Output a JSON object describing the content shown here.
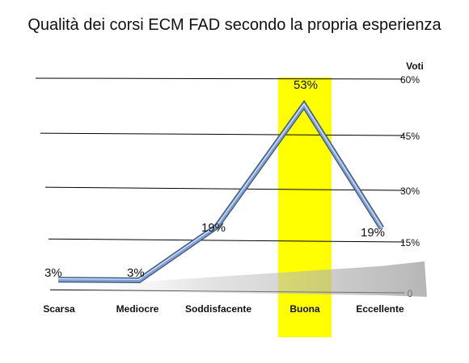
{
  "chart_data": {
    "type": "line",
    "title": "Qualità dei corsi ECM FAD secondo la propria esperienza",
    "ylabel": "Voti",
    "categories": [
      "Scarsa",
      "Mediocre",
      "Soddisfacente",
      "Buona",
      "Eccellente"
    ],
    "values": [
      3,
      3,
      19,
      53,
      19
    ],
    "value_labels": [
      "3%",
      "3%",
      "19%",
      "53%",
      "19%"
    ],
    "ylim": [
      0,
      60
    ],
    "y_ticks": [
      0,
      15,
      30,
      45,
      60
    ],
    "y_tick_labels": [
      "0",
      "15%",
      "30%",
      "45%",
      "60%"
    ],
    "highlight_category": "Buona",
    "grid": true,
    "colors": {
      "line": "#7f9fd6",
      "line_edge": "#3e5478",
      "highlight": "#ffff00",
      "grid": "#000000"
    }
  }
}
